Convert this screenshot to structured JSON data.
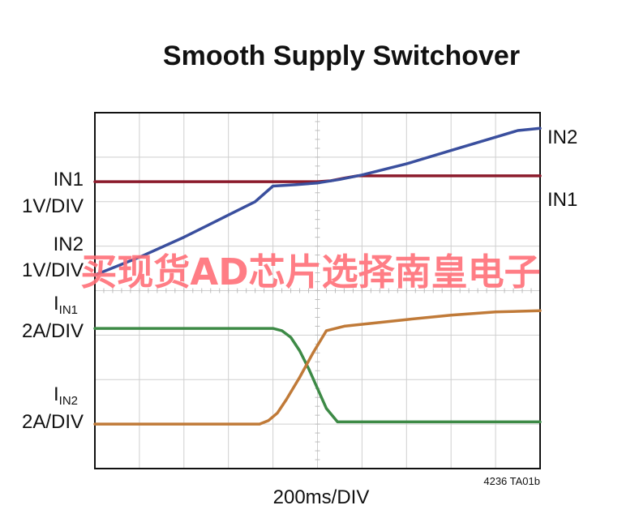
{
  "chart_data": {
    "type": "line",
    "title": "Smooth Supply Switchover",
    "xlabel": "200ms/DIV",
    "figure_code": "4236 TA01b",
    "x_divisions": 10,
    "y_divisions": 8,
    "grid": true,
    "left_labels": [
      {
        "name": "IN1",
        "sub": "",
        "scale": "1V/DIV"
      },
      {
        "name": "IN2",
        "sub": "",
        "scale": "1V/DIV"
      },
      {
        "name": "I",
        "sub": "IN1",
        "scale": "2A/DIV"
      },
      {
        "name": "I",
        "sub": "IN2",
        "scale": "2A/DIV"
      }
    ],
    "right_labels": [
      "IN2",
      "IN1"
    ],
    "series": [
      {
        "name": "IN1",
        "color": "#8b1a2b",
        "points": [
          [
            0,
            6.45
          ],
          [
            5.0,
            6.45
          ],
          [
            5.3,
            6.47
          ],
          [
            5.6,
            6.53
          ],
          [
            5.9,
            6.58
          ],
          [
            7.0,
            6.58
          ],
          [
            10.0,
            6.58
          ]
        ]
      },
      {
        "name": "IN2",
        "color": "#3a4f9e",
        "points": [
          [
            0,
            4.35
          ],
          [
            1.0,
            4.75
          ],
          [
            2.0,
            5.2
          ],
          [
            3.0,
            5.7
          ],
          [
            3.6,
            6.0
          ],
          [
            4.0,
            6.35
          ],
          [
            4.5,
            6.38
          ],
          [
            5.0,
            6.42
          ],
          [
            5.5,
            6.5
          ],
          [
            6.0,
            6.6
          ],
          [
            7.0,
            6.85
          ],
          [
            8.0,
            7.15
          ],
          [
            9.0,
            7.45
          ],
          [
            9.5,
            7.6
          ],
          [
            10.0,
            7.65
          ]
        ]
      },
      {
        "name": "IIN1",
        "color": "#3d8a46",
        "points": [
          [
            0,
            3.15
          ],
          [
            4.0,
            3.15
          ],
          [
            4.2,
            3.1
          ],
          [
            4.4,
            2.95
          ],
          [
            4.6,
            2.65
          ],
          [
            4.8,
            2.25
          ],
          [
            5.0,
            1.8
          ],
          [
            5.2,
            1.35
          ],
          [
            5.45,
            1.05
          ],
          [
            7.0,
            1.05
          ],
          [
            10.0,
            1.05
          ]
        ]
      },
      {
        "name": "IIN2",
        "color": "#c07a38",
        "points": [
          [
            0,
            1.0
          ],
          [
            3.7,
            1.0
          ],
          [
            3.9,
            1.08
          ],
          [
            4.1,
            1.25
          ],
          [
            4.3,
            1.55
          ],
          [
            4.6,
            2.05
          ],
          [
            4.9,
            2.6
          ],
          [
            5.2,
            3.1
          ],
          [
            5.6,
            3.2
          ],
          [
            7.0,
            3.35
          ],
          [
            8.0,
            3.45
          ],
          [
            9.0,
            3.52
          ],
          [
            10.0,
            3.55
          ]
        ]
      }
    ]
  },
  "watermark": "买现货AD芯片选择南皇电子"
}
